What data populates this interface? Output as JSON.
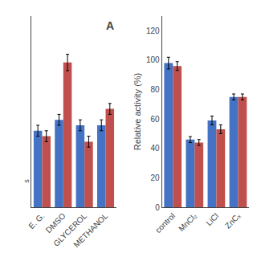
{
  "chart_data": [
    {
      "type": "bar",
      "title": "A",
      "categories": [
        "E. G.",
        "DMSO",
        "GLYCEROL",
        "METHANOL"
      ],
      "series": [
        {
          "color": "#4472C4",
          "values": [
            88,
            92,
            90,
            90
          ],
          "errors": [
            2,
            2,
            2,
            2
          ]
        },
        {
          "color": "#C0504D",
          "values": [
            86,
            113,
            84,
            96
          ],
          "errors": [
            2,
            3,
            2,
            2
          ]
        }
      ],
      "ylim": [
        60,
        130
      ],
      "yticks": [],
      "tick_labels": "x",
      "grid": false,
      "annotations": [
        "s"
      ]
    },
    {
      "type": "bar",
      "ylabel": "Relative activity (%)",
      "categories": [
        "control",
        "MnCl₂",
        "LiCl",
        "ZnCₓ"
      ],
      "series": [
        {
          "color": "#4472C4",
          "values": [
            98,
            46,
            59,
            75
          ],
          "errors": [
            4,
            2,
            3,
            2
          ]
        },
        {
          "color": "#C0504D",
          "values": [
            96,
            44,
            53,
            75
          ],
          "errors": [
            3,
            2,
            3,
            2
          ]
        }
      ],
      "ylim": [
        0,
        130
      ],
      "yticks": [
        0,
        20,
        40,
        60,
        80,
        100,
        120
      ],
      "grid": false
    }
  ]
}
